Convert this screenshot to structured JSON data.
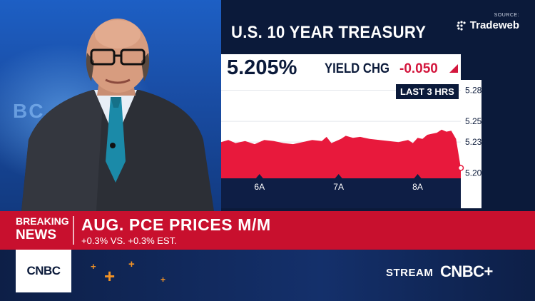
{
  "source": {
    "label": "SOURCE:",
    "provider": "Tradeweb"
  },
  "panel": {
    "title": "U.S. 10 YEAR TREASURY",
    "value": "5.205%",
    "change_label": "YIELD CHG",
    "change_value": "-0.050",
    "range": "LAST 3 HRS"
  },
  "chart_data": {
    "type": "area",
    "x_ticks": [
      "6A",
      "7A",
      "8A"
    ],
    "y_ticks": [
      5.28,
      5.25,
      5.23,
      5.2
    ],
    "ylim": [
      5.195,
      5.29
    ],
    "color": "#e8193c",
    "x": [
      0,
      0.03,
      0.06,
      0.1,
      0.14,
      0.18,
      0.22,
      0.26,
      0.3,
      0.34,
      0.38,
      0.42,
      0.44,
      0.46,
      0.5,
      0.52,
      0.55,
      0.58,
      0.62,
      0.66,
      0.7,
      0.74,
      0.78,
      0.8,
      0.82,
      0.84,
      0.86,
      0.88,
      0.9,
      0.92,
      0.94,
      0.96,
      0.98,
      1.0
    ],
    "values": [
      5.23,
      5.232,
      5.229,
      5.231,
      5.228,
      5.232,
      5.231,
      5.229,
      5.228,
      5.23,
      5.232,
      5.231,
      5.235,
      5.229,
      5.233,
      5.236,
      5.234,
      5.235,
      5.233,
      5.232,
      5.231,
      5.23,
      5.232,
      5.229,
      5.234,
      5.233,
      5.237,
      5.238,
      5.239,
      5.242,
      5.24,
      5.241,
      5.233,
      5.205
    ],
    "grid": true
  },
  "breaking": {
    "label_line1": "BREAKING",
    "label_line2": "NEWS",
    "headline": "AUG. PCE PRICES M/M",
    "subheadline": "+0.3% VS. +0.3% EST."
  },
  "network": {
    "logo": "CNBC",
    "stream_label": "STREAM",
    "stream_brand": "CNBC+"
  },
  "colors": {
    "breaking_red": "#c8102e",
    "navy": "#0b1a3a",
    "accent_orange": "#f39325",
    "down_red": "#d3163d"
  },
  "icons": {
    "tradeweb": "tradeweb-logo-icon",
    "arrow": "down-arrow-icon",
    "plus": "plus-icon"
  }
}
